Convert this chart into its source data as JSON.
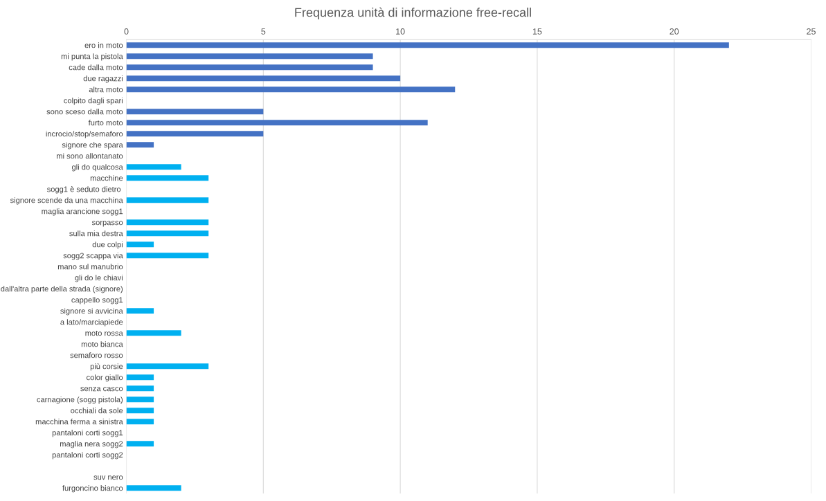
{
  "chart_data": {
    "type": "bar",
    "orientation": "horizontal",
    "title": "Frequenza unità di informazione free-recall",
    "categories": [
      "ero in moto",
      "mi punta la pistola",
      "cade dalla moto",
      "due ragazzi",
      "altra moto",
      "colpito dagli spari",
      "sono sceso dalla moto",
      "furto moto",
      "incrocio/stop/semaforo",
      "signore che spara",
      "mi sono allontanato",
      "gli do qualcosa",
      "macchine",
      "sogg1 è seduto dietro ",
      "signore scende da una macchina",
      "maglia arancione sogg1",
      "sorpasso",
      "sulla mia destra",
      "due colpi",
      "sogg2 scappa via",
      "mano sul manubrio",
      "gli do le chiavi",
      "dall'altra parte della strada (signore)",
      "cappello sogg1",
      "signore si avvicina",
      "a lato/marciapiede",
      "moto rossa",
      "moto bianca",
      "semaforo rosso",
      "più corsie",
      "color giallo",
      "senza casco",
      "carnagione (sogg pistola)",
      "occhiali da sole",
      "macchina ferma a sinistra",
      "pantaloni corti sogg1",
      "maglia nera sogg2",
      "pantaloni corti sogg2",
      null,
      "suv nero",
      "furgoncino bianco"
    ],
    "values": [
      22,
      9,
      9,
      10,
      12,
      0,
      5,
      11,
      5,
      1,
      0,
      2,
      3,
      0,
      3,
      0,
      3,
      3,
      1,
      3,
      0,
      0,
      0,
      0,
      1,
      0,
      2,
      0,
      0,
      3,
      1,
      1,
      1,
      1,
      1,
      0,
      1,
      0,
      null,
      0,
      2
    ],
    "colors": [
      "#4472c4",
      "#4472c4",
      "#4472c4",
      "#4472c4",
      "#4472c4",
      "#4472c4",
      "#4472c4",
      "#4472c4",
      "#4472c4",
      "#4472c4",
      "#4472c4",
      "#00b0f0",
      "#00b0f0",
      "#00b0f0",
      "#00b0f0",
      "#00b0f0",
      "#00b0f0",
      "#00b0f0",
      "#00b0f0",
      "#00b0f0",
      "#00b0f0",
      "#00b0f0",
      "#00b0f0",
      "#00b0f0",
      "#00b0f0",
      "#00b0f0",
      "#00b0f0",
      "#00b0f0",
      "#00b0f0",
      "#00b0f0",
      "#00b0f0",
      "#00b0f0",
      "#00b0f0",
      "#00b0f0",
      "#00b0f0",
      "#00b0f0",
      "#00b0f0",
      "#00b0f0",
      "#00b0f0",
      "#00b0f0",
      "#00b0f0"
    ],
    "xlim": [
      0,
      25
    ],
    "xticks": [
      0,
      5,
      10,
      15,
      20,
      25
    ],
    "grid": "x"
  }
}
